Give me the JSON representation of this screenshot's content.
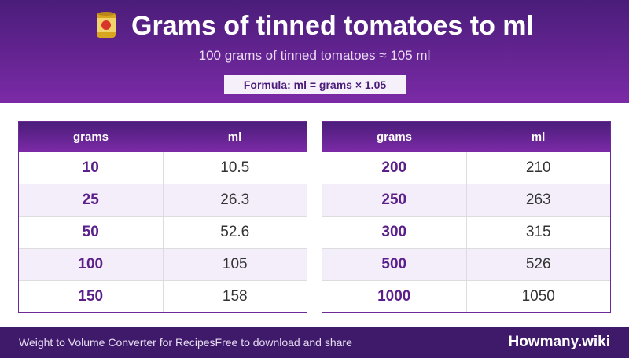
{
  "header": {
    "title": "Grams of tinned tomatoes to ml",
    "subtitle": "100 grams of tinned tomatoes ≈ 105 ml",
    "formula": "Formula: ml = grams × 1.05"
  },
  "tables": [
    {
      "columns": [
        "grams",
        "ml"
      ],
      "rows": [
        [
          10,
          10.5
        ],
        [
          25,
          26.3
        ],
        [
          50,
          52.6
        ],
        [
          100,
          105
        ],
        [
          150,
          158
        ]
      ]
    },
    {
      "columns": [
        "grams",
        "ml"
      ],
      "rows": [
        [
          200,
          210
        ],
        [
          250,
          263
        ],
        [
          300,
          315
        ],
        [
          500,
          526
        ],
        [
          1000,
          1050
        ]
      ]
    }
  ],
  "footer": {
    "left": "Weight to Volume Converter for Recipes",
    "note": "Free to download and share",
    "brand": "Howmany.wiki"
  }
}
